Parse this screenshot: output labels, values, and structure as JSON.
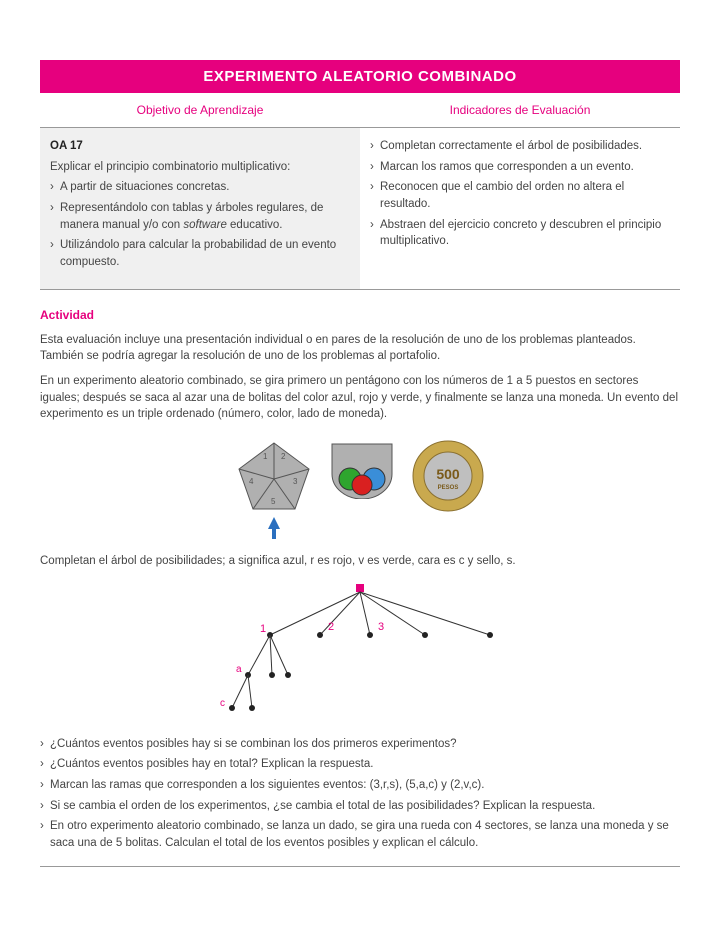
{
  "title": "EXPERIMENTO ALEATORIO COMBINADO",
  "headers": {
    "left": "Objetivo de Aprendizaje",
    "right": "Indicadores de Evaluación"
  },
  "oa": {
    "code": "OA 17",
    "desc": "Explicar el principio combinatorio multiplicativo:",
    "items": [
      "A partir de situaciones concretas.",
      "Representándolo con tablas y árboles regulares, de manera manual y/o con software educativo.",
      "Utilizándolo para calcular la probabilidad de un evento compuesto."
    ]
  },
  "indicators": [
    "Completan correctamente el árbol de posibilidades.",
    "Marcan los ramos que corresponden a un evento.",
    "Reconocen que el cambio del orden no altera el resultado.",
    "Abstraen del ejercicio concreto y descubren el principio multiplicativo."
  ],
  "activity": {
    "heading": "Actividad",
    "para1": "Esta evaluación incluye una presentación individual o en pares de la resolución de uno de los problemas planteados. También se podría agregar la resolución de uno de los problemas al portafolio.",
    "para2": "En un experimento aleatorio combinado, se gira primero un pentágono con los números de 1 a 5 puestos en sectores iguales; después se saca al azar una de bolitas del color azul, rojo y verde, y finalmente se lanza una moneda. Un evento del experimento es un triple ordenado (número, color, lado de moneda).",
    "treeInstr": "Completan el árbol de posibilidades; a significa azul, r es rojo, v es verde, cara es c y sello, s.",
    "questions": [
      "¿Cuántos eventos posibles hay si se combinan los dos primeros experimentos?",
      "¿Cuántos eventos posibles hay en total? Explican la respuesta.",
      "Marcan las ramas que corresponden a los siguientes eventos: (3,r,s), (5,a,c) y (2,v,c).",
      "Si se cambia el orden de los experimentos, ¿se cambia el total de las posibilidades? Explican la respuesta.",
      "En otro experimento aleatorio combinado, se lanza un dado, se gira una rueda con 4 sectores, se lanza una moneda y se saca una de 5 bolitas. Calculan el total de los eventos posibles y explican el cálculo."
    ]
  },
  "figure": {
    "pentagon": {
      "fill": "#b0b0b0",
      "stroke": "#555",
      "labels": [
        "1",
        "2",
        "3",
        "4",
        "5"
      ]
    },
    "bowl": {
      "fill": "#b0b0b0",
      "balls": [
        {
          "color": "#2ea52e"
        },
        {
          "color": "#d92020"
        },
        {
          "color": "#3a8ed8"
        }
      ]
    },
    "coin": {
      "outer": "#c9a94e",
      "inner": "#bfbfbf",
      "text": "500",
      "sub": "PESOS",
      "text_color": "#7a5a1a"
    },
    "arrow_color": "#2a6fbf"
  },
  "tree": {
    "root_color": "#e6007e",
    "node_color": "#222",
    "label_color": "#e6007e",
    "labels": {
      "n1": "1",
      "n2": "2",
      "n3": "3",
      "a": "a",
      "c": "c"
    }
  }
}
